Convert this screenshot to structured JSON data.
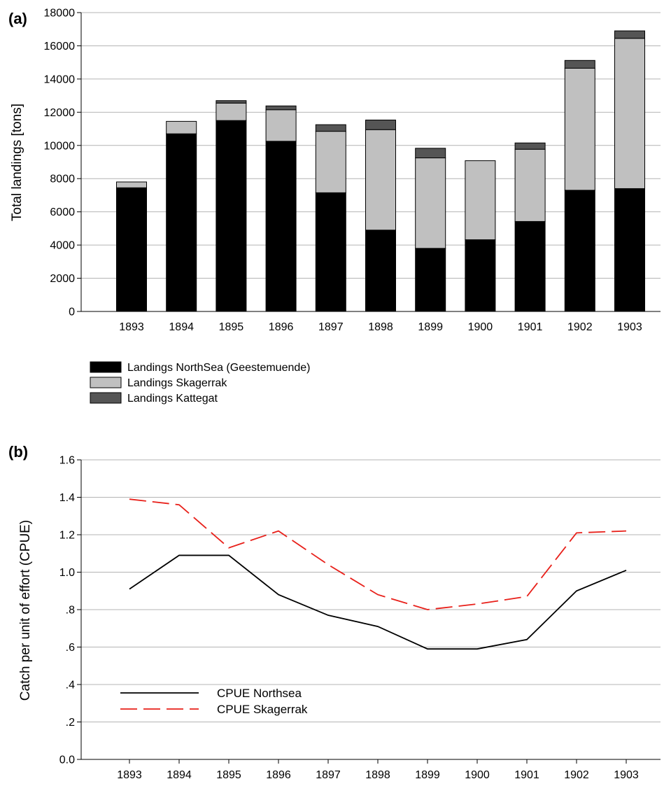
{
  "chart_data": [
    {
      "panel_label": "(a)",
      "type": "bar",
      "stacked": true,
      "title": "",
      "xlabel": "",
      "ylabel": "Total landings [tons]",
      "categories": [
        "1893",
        "1894",
        "1895",
        "1896",
        "1897",
        "1898",
        "1899",
        "1900",
        "1901",
        "1902",
        "1903"
      ],
      "ylim": [
        0,
        18000
      ],
      "yticks": [
        "0",
        "2000",
        "4000",
        "6000",
        "8000",
        "10000",
        "12000",
        "14000",
        "16000",
        "18000"
      ],
      "grid": true,
      "legend": "below",
      "series": [
        {
          "name": "Landings NorthSea (Geestemuende)",
          "color": "#000000",
          "values": [
            7450,
            10700,
            11500,
            10250,
            7150,
            4900,
            3800,
            4320,
            5420,
            7300,
            7400
          ]
        },
        {
          "name": "Landings Skagerrak",
          "color": "#c0c0c0",
          "values": [
            350,
            750,
            1050,
            1900,
            3700,
            6050,
            5450,
            4760,
            4350,
            7350,
            9050
          ]
        },
        {
          "name": "Landings Kattegat",
          "color": "#555555",
          "values": [
            0,
            0,
            150,
            230,
            400,
            580,
            580,
            0,
            380,
            470,
            450
          ]
        }
      ]
    },
    {
      "panel_label": "(b)",
      "type": "line",
      "title": "",
      "xlabel": "",
      "ylabel": "Catch per unit of effort (CPUE)",
      "x": [
        "1893",
        "1894",
        "1895",
        "1896",
        "1897",
        "1898",
        "1899",
        "1900",
        "1901",
        "1902",
        "1903"
      ],
      "ylim": [
        0,
        1.6
      ],
      "yticks": [
        "0.0",
        ".2",
        ".4",
        ".6",
        ".8",
        "1.0",
        "1.2",
        "1.4",
        "1.6"
      ],
      "grid": true,
      "legend": "bottom-left",
      "series": [
        {
          "name": "CPUE Northsea",
          "color": "#000000",
          "style": "solid",
          "values": [
            0.91,
            1.09,
            1.09,
            0.88,
            0.77,
            0.71,
            0.59,
            0.59,
            0.64,
            0.9,
            1.01
          ]
        },
        {
          "name": "CPUE Skagerrak",
          "color": "#e8201a",
          "style": "dashed",
          "values": [
            1.39,
            1.36,
            1.13,
            1.22,
            1.04,
            0.88,
            0.8,
            0.83,
            0.87,
            1.21,
            1.22
          ]
        }
      ]
    }
  ]
}
